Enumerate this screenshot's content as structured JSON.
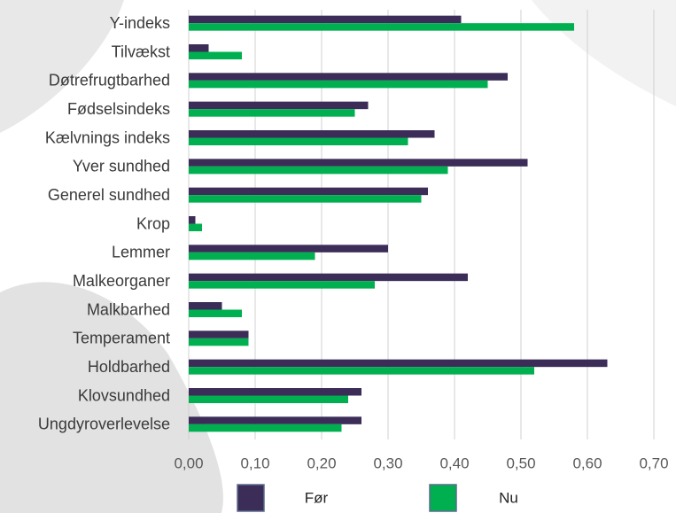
{
  "chart_data": {
    "type": "bar",
    "orientation": "horizontal",
    "categories": [
      "Y-indeks",
      "Tilvækst",
      "Døtrefrugtbarhed",
      "Fødselsindeks",
      "Kælvnings indeks",
      "Yver sundhed",
      "Generel sundhed",
      "Krop",
      "Lemmer",
      "Malkeorganer",
      "Malkbarhed",
      "Temperament",
      "Holdbarhed",
      "Klovsundhed",
      "Ungdyroverlevelse"
    ],
    "series": [
      {
        "name": "Før",
        "color": "#3b2d57",
        "values": [
          0.41,
          0.03,
          0.48,
          0.27,
          0.37,
          0.51,
          0.36,
          0.01,
          0.3,
          0.42,
          0.05,
          0.09,
          0.63,
          0.26,
          0.26
        ]
      },
      {
        "name": "Nu",
        "color": "#00b050",
        "values": [
          0.58,
          0.08,
          0.45,
          0.25,
          0.33,
          0.39,
          0.35,
          0.02,
          0.19,
          0.28,
          0.08,
          0.09,
          0.52,
          0.24,
          0.23
        ]
      }
    ],
    "xlim": [
      0,
      0.7
    ],
    "xticks": [
      {
        "value": 0,
        "label": "0,00"
      },
      {
        "value": 0.1,
        "label": "0,10"
      },
      {
        "value": 0.2,
        "label": "0,20"
      },
      {
        "value": 0.3,
        "label": "0,30"
      },
      {
        "value": 0.4,
        "label": "0,40"
      },
      {
        "value": 0.5,
        "label": "0,50"
      },
      {
        "value": 0.6,
        "label": "0,60"
      },
      {
        "value": 0.7,
        "label": "0,70"
      }
    ],
    "grid": true,
    "legend": "bottom"
  }
}
